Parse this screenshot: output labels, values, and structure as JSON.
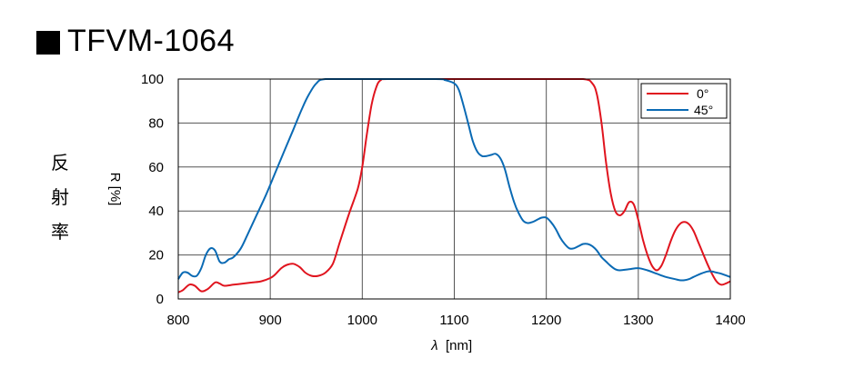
{
  "title": "TFVM-1064",
  "side_label": [
    "反",
    "射",
    "率"
  ],
  "colors": {
    "series_0": "#e0141e",
    "series_45": "#0a6ab4",
    "grid": "#555555"
  },
  "chart_data": {
    "type": "line",
    "xlabel_symbol": "λ",
    "xlabel_unit": "[nm]",
    "ylabel": "R [%]",
    "xlim": [
      800,
      1400
    ],
    "ylim": [
      0,
      100
    ],
    "xticks": [
      800,
      900,
      1000,
      1100,
      1200,
      1300,
      1400
    ],
    "yticks": [
      0,
      20,
      40,
      60,
      80,
      100
    ],
    "grid": true,
    "legend_position": "top-right",
    "series": [
      {
        "name": "0°",
        "color": "#e0141e",
        "points": [
          [
            800,
            3
          ],
          [
            805,
            4
          ],
          [
            812,
            6.5
          ],
          [
            818,
            6
          ],
          [
            825,
            3.5
          ],
          [
            832,
            4.5
          ],
          [
            840,
            7.5
          ],
          [
            845,
            7
          ],
          [
            850,
            6
          ],
          [
            860,
            6.5
          ],
          [
            870,
            7
          ],
          [
            880,
            7.5
          ],
          [
            890,
            8
          ],
          [
            900,
            9.5
          ],
          [
            905,
            11
          ],
          [
            912,
            14
          ],
          [
            918,
            15.5
          ],
          [
            925,
            16
          ],
          [
            932,
            14.5
          ],
          [
            938,
            12
          ],
          [
            945,
            10.5
          ],
          [
            952,
            10.5
          ],
          [
            960,
            12
          ],
          [
            968,
            16
          ],
          [
            975,
            25
          ],
          [
            985,
            38
          ],
          [
            995,
            50
          ],
          [
            1000,
            60
          ],
          [
            1005,
            75
          ],
          [
            1010,
            88
          ],
          [
            1015,
            96
          ],
          [
            1020,
            99.5
          ],
          [
            1030,
            100
          ],
          [
            1100,
            100
          ],
          [
            1200,
            100
          ],
          [
            1240,
            100
          ],
          [
            1250,
            98
          ],
          [
            1255,
            93
          ],
          [
            1260,
            80
          ],
          [
            1265,
            62
          ],
          [
            1270,
            48
          ],
          [
            1275,
            40
          ],
          [
            1280,
            38
          ],
          [
            1285,
            40
          ],
          [
            1290,
            44
          ],
          [
            1295,
            43
          ],
          [
            1300,
            36
          ],
          [
            1305,
            27
          ],
          [
            1310,
            20
          ],
          [
            1315,
            15
          ],
          [
            1320,
            13
          ],
          [
            1325,
            15
          ],
          [
            1330,
            20
          ],
          [
            1335,
            26
          ],
          [
            1340,
            31
          ],
          [
            1345,
            34
          ],
          [
            1350,
            35
          ],
          [
            1355,
            34
          ],
          [
            1360,
            31
          ],
          [
            1365,
            26
          ],
          [
            1370,
            21
          ],
          [
            1375,
            16
          ],
          [
            1380,
            11.5
          ],
          [
            1385,
            8
          ],
          [
            1390,
            6.5
          ],
          [
            1395,
            7
          ],
          [
            1400,
            8
          ]
        ]
      },
      {
        "name": "45°",
        "color": "#0a6ab4",
        "points": [
          [
            800,
            9
          ],
          [
            805,
            12
          ],
          [
            810,
            12
          ],
          [
            815,
            10.5
          ],
          [
            820,
            10.5
          ],
          [
            825,
            14
          ],
          [
            830,
            20
          ],
          [
            835,
            23
          ],
          [
            840,
            22
          ],
          [
            845,
            17
          ],
          [
            850,
            16.5
          ],
          [
            855,
            18
          ],
          [
            860,
            19
          ],
          [
            868,
            23
          ],
          [
            875,
            29
          ],
          [
            885,
            38
          ],
          [
            895,
            47
          ],
          [
            905,
            57
          ],
          [
            915,
            67
          ],
          [
            925,
            77
          ],
          [
            935,
            87
          ],
          [
            942,
            93
          ],
          [
            950,
            98
          ],
          [
            960,
            100
          ],
          [
            1000,
            100
          ],
          [
            1080,
            100
          ],
          [
            1090,
            99.5
          ],
          [
            1100,
            98
          ],
          [
            1105,
            95
          ],
          [
            1110,
            88
          ],
          [
            1115,
            80
          ],
          [
            1120,
            72
          ],
          [
            1125,
            67
          ],
          [
            1130,
            65
          ],
          [
            1135,
            65
          ],
          [
            1140,
            65.5
          ],
          [
            1145,
            66
          ],
          [
            1150,
            64
          ],
          [
            1155,
            59
          ],
          [
            1160,
            51
          ],
          [
            1165,
            44
          ],
          [
            1170,
            39
          ],
          [
            1175,
            35.5
          ],
          [
            1180,
            34.5
          ],
          [
            1185,
            35
          ],
          [
            1190,
            36
          ],
          [
            1195,
            37
          ],
          [
            1200,
            37
          ],
          [
            1205,
            35
          ],
          [
            1210,
            32
          ],
          [
            1215,
            28
          ],
          [
            1220,
            25
          ],
          [
            1225,
            23
          ],
          [
            1230,
            23
          ],
          [
            1235,
            24
          ],
          [
            1240,
            25
          ],
          [
            1245,
            25
          ],
          [
            1250,
            24
          ],
          [
            1255,
            22
          ],
          [
            1260,
            19
          ],
          [
            1265,
            17
          ],
          [
            1270,
            15
          ],
          [
            1275,
            13.5
          ],
          [
            1280,
            13
          ],
          [
            1290,
            13.5
          ],
          [
            1300,
            14
          ],
          [
            1310,
            13
          ],
          [
            1320,
            11.5
          ],
          [
            1330,
            10
          ],
          [
            1340,
            9
          ],
          [
            1345,
            8.5
          ],
          [
            1350,
            8.5
          ],
          [
            1355,
            9
          ],
          [
            1360,
            10
          ],
          [
            1368,
            11.5
          ],
          [
            1375,
            12.5
          ],
          [
            1380,
            12.5
          ],
          [
            1385,
            12
          ],
          [
            1390,
            11.5
          ],
          [
            1400,
            10
          ]
        ]
      }
    ]
  }
}
